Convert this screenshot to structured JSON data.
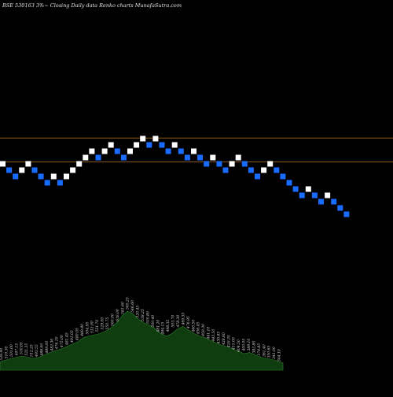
{
  "chart_data": {
    "type": "renko",
    "title": "BSE 530163 3%~  Closing Daily data  Renko  charts MunafaSutra.com",
    "colors": {
      "background": "#000000",
      "up_brick": "#ffffff",
      "down_brick": "#1a6bff",
      "level_line": "#8a5a1a",
      "volume_fill": "#0f3d0f",
      "volume_stroke": "#2e7d2e",
      "labels": "#d8d8d8"
    },
    "price_range": [
      344,
      616
    ],
    "levels": [
      531,
      493
    ],
    "bricks": [
      {
        "price": 490,
        "dir": "up"
      },
      {
        "price": 480,
        "dir": "down"
      },
      {
        "price": 470,
        "dir": "down"
      },
      {
        "price": 480,
        "dir": "up"
      },
      {
        "price": 490,
        "dir": "up"
      },
      {
        "price": 480,
        "dir": "down"
      },
      {
        "price": 470,
        "dir": "down"
      },
      {
        "price": 460,
        "dir": "down"
      },
      {
        "price": 470,
        "dir": "up"
      },
      {
        "price": 460,
        "dir": "down"
      },
      {
        "price": 470,
        "dir": "up"
      },
      {
        "price": 480,
        "dir": "up"
      },
      {
        "price": 490,
        "dir": "up"
      },
      {
        "price": 500,
        "dir": "up"
      },
      {
        "price": 510,
        "dir": "up"
      },
      {
        "price": 500,
        "dir": "down"
      },
      {
        "price": 510,
        "dir": "up"
      },
      {
        "price": 520,
        "dir": "up"
      },
      {
        "price": 510,
        "dir": "down"
      },
      {
        "price": 500,
        "dir": "down"
      },
      {
        "price": 510,
        "dir": "up"
      },
      {
        "price": 520,
        "dir": "up"
      },
      {
        "price": 530,
        "dir": "up"
      },
      {
        "price": 520,
        "dir": "down"
      },
      {
        "price": 530,
        "dir": "up"
      },
      {
        "price": 520,
        "dir": "down"
      },
      {
        "price": 510,
        "dir": "down"
      },
      {
        "price": 520,
        "dir": "up"
      },
      {
        "price": 510,
        "dir": "down"
      },
      {
        "price": 500,
        "dir": "down"
      },
      {
        "price": 510,
        "dir": "up"
      },
      {
        "price": 500,
        "dir": "down"
      },
      {
        "price": 490,
        "dir": "down"
      },
      {
        "price": 500,
        "dir": "up"
      },
      {
        "price": 490,
        "dir": "down"
      },
      {
        "price": 480,
        "dir": "down"
      },
      {
        "price": 490,
        "dir": "up"
      },
      {
        "price": 500,
        "dir": "up"
      },
      {
        "price": 490,
        "dir": "down"
      },
      {
        "price": 480,
        "dir": "down"
      },
      {
        "price": 470,
        "dir": "down"
      },
      {
        "price": 480,
        "dir": "up"
      },
      {
        "price": 490,
        "dir": "up"
      },
      {
        "price": 480,
        "dir": "down"
      },
      {
        "price": 470,
        "dir": "down"
      },
      {
        "price": 460,
        "dir": "down"
      },
      {
        "price": 450,
        "dir": "down"
      },
      {
        "price": 440,
        "dir": "down"
      },
      {
        "price": 450,
        "dir": "up"
      },
      {
        "price": 440,
        "dir": "down"
      },
      {
        "price": 430,
        "dir": "down"
      },
      {
        "price": 440,
        "dir": "up"
      },
      {
        "price": 430,
        "dir": "down"
      },
      {
        "price": 420,
        "dir": "down"
      },
      {
        "price": 410,
        "dir": "down"
      }
    ],
    "volume_profile": [
      0.14,
      0.17,
      0.2,
      0.22,
      0.24,
      0.22,
      0.2,
      0.22,
      0.26,
      0.3,
      0.33,
      0.36,
      0.4,
      0.44,
      0.48,
      0.55,
      0.58,
      0.6,
      0.62,
      0.66,
      0.72,
      0.8,
      0.92,
      1.0,
      0.95,
      0.86,
      0.8,
      0.76,
      0.7,
      0.62,
      0.58,
      0.62,
      0.7,
      0.74,
      0.68,
      0.62,
      0.58,
      0.55,
      0.5,
      0.46,
      0.42,
      0.4,
      0.36,
      0.32,
      0.28,
      0.3,
      0.26,
      0.22,
      0.2,
      0.18,
      0.16,
      0.12
    ],
    "volume_labels": [
      "526.90",
      "510.30",
      "501.00",
      "497.15",
      "510.65",
      "521.35",
      "512.25",
      "493.55",
      "486.00",
      "489.00",
      "482.30",
      "476.10",
      "475.00",
      "481.45",
      "491.05",
      "480.05",
      "489.80",
      "504.95",
      "512.00",
      "521.70",
      "529.00",
      "550.75",
      "560.00",
      "616.00",
      "581.60",
      "565.25",
      "546.60",
      "520.45",
      "518.25",
      "505.80",
      "500.40",
      "481.20",
      "494.15",
      "498.35",
      "503.70",
      "478.30",
      "469.35",
      "476.95",
      "460.50",
      "456.45",
      "459.30",
      "441.10",
      "443.50",
      "430.85",
      "428.60",
      "420.35",
      "415.00",
      "404.50",
      "400.05",
      "389.10",
      "382.80",
      "374.85",
      "361.40",
      "350.65",
      "341.00",
      "344.10"
    ]
  }
}
